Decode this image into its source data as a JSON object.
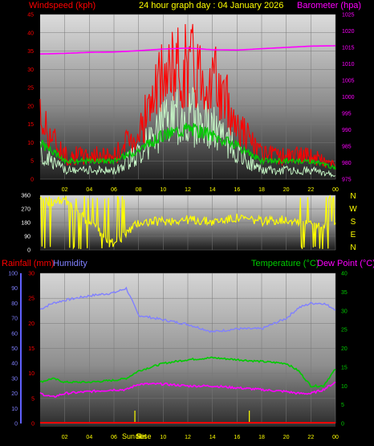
{
  "header": {
    "windspeed_label": "Windspeed (kph)",
    "title": "24 hour graph day : 04 January 2026",
    "barometer_label": "Barometer (hpa)"
  },
  "lower_header": {
    "rainfall_label": "Rainfall (mm)",
    "humidity_label": "Humidity",
    "temperature_label": "Temperature (°C)",
    "dewpoint_label": "Dew Point (°C)"
  },
  "direction_labels": [
    "N",
    "W",
    "S",
    "E",
    "N"
  ],
  "sun_labels": {
    "sunrise": "Sun Rise",
    "sunset": "Set"
  },
  "colors": {
    "wind_gust": "#ff0000",
    "wind_avg": "#00cc00",
    "wind_speed": "#ccffcc",
    "barometer": "#ff00ff",
    "direction": "#ffff00",
    "humidity": "#8080ff",
    "temperature": "#00cc00",
    "dewpoint": "#ff00ff",
    "rainfall": "#ff0000"
  },
  "chart_data": [
    {
      "type": "line",
      "title": "24 hour graph day : 04 January 2026",
      "ylabel_left": "Windspeed (kph)",
      "ylabel_right": "Barometer (hpa)",
      "x_ticks": [
        "02",
        "04",
        "06",
        "08",
        "10",
        "12",
        "14",
        "16",
        "18",
        "20",
        "22",
        "00"
      ],
      "ylim_left": [
        0,
        45
      ],
      "y_ticks_left": [
        0,
        5,
        10,
        15,
        20,
        25,
        30,
        35,
        40,
        45
      ],
      "ylim_right": [
        975,
        1025
      ],
      "y_ticks_right": [
        975,
        980,
        985,
        990,
        995,
        1000,
        1005,
        1010,
        1015,
        1020,
        1025
      ],
      "hours": [
        0,
        2,
        4,
        6,
        8,
        10,
        12,
        14,
        16,
        18,
        20,
        22,
        24
      ],
      "series": [
        {
          "name": "Windspeed (kph)",
          "values": [
            12,
            4,
            4,
            4,
            12,
            24,
            30,
            24,
            12,
            4,
            4,
            4,
            2
          ]
        },
        {
          "name": "Gust",
          "values": [
            18,
            7,
            7,
            7,
            14,
            30,
            35,
            30,
            17,
            7,
            7,
            7,
            4
          ]
        },
        {
          "name": "Average",
          "values": [
            10,
            5,
            5,
            5,
            8,
            12,
            14,
            12,
            9,
            5,
            5,
            5,
            3
          ]
        },
        {
          "name": "Barometer (hpa)",
          "values": [
            1013,
            1013.2,
            1013.5,
            1013.6,
            1014,
            1014.5,
            1014.8,
            1014.3,
            1014.2,
            1014.6,
            1015,
            1015.4,
            1015.5
          ]
        }
      ]
    },
    {
      "type": "scatter",
      "ylabel": "Wind direction",
      "ylim": [
        0,
        360
      ],
      "y_ticks": [
        0,
        90,
        180,
        270,
        360
      ],
      "x_ticks": [
        "02",
        "04",
        "06",
        "08",
        "10",
        "12",
        "14",
        "16",
        "18",
        "20",
        "22",
        "00"
      ],
      "hours": [
        0,
        2,
        4,
        6,
        8,
        10,
        12,
        14,
        16,
        18,
        20,
        22,
        24
      ],
      "series": [
        {
          "name": "Wind direction",
          "values": [
            315,
            320,
            180,
            40,
            180,
            190,
            200,
            185,
            210,
            190,
            200,
            180,
            160
          ]
        }
      ]
    },
    {
      "type": "line",
      "ylabel_left_outer": "Humidity",
      "ylim_humidity": [
        0,
        100
      ],
      "y_ticks_humidity": [
        0,
        10,
        20,
        30,
        40,
        50,
        60,
        70,
        80,
        90,
        100
      ],
      "ylabel_left_inner": "Rainfall (mm)",
      "ylim_rainfall": [
        0,
        30
      ],
      "y_ticks_rainfall": [
        0,
        5,
        10,
        15,
        20,
        25,
        30
      ],
      "ylabel_right": "Temperature (°C)",
      "ylim_temperature": [
        0,
        40
      ],
      "y_ticks_temperature": [
        0,
        5,
        10,
        15,
        20,
        25,
        30,
        35,
        40
      ],
      "x_ticks": [
        "02",
        "04",
        "06",
        "08",
        "10",
        "12",
        "14",
        "16",
        "18",
        "20",
        "22",
        "00"
      ],
      "hours": [
        0,
        1,
        2,
        4,
        6,
        7,
        8,
        10,
        12,
        14,
        16,
        18,
        20,
        21,
        22,
        23,
        24
      ],
      "series": [
        {
          "name": "Humidity",
          "values": [
            76,
            80,
            82,
            85,
            87,
            90,
            72,
            69,
            66,
            61,
            63,
            63,
            70,
            77,
            80,
            80,
            76
          ]
        },
        {
          "name": "Temperature (°C)",
          "values": [
            11,
            12,
            11,
            11,
            11.5,
            12,
            14,
            16,
            17,
            17.5,
            17,
            16.5,
            16,
            14,
            10,
            10,
            14.5
          ]
        },
        {
          "name": "Dew Point (°C)",
          "values": [
            8,
            7,
            8,
            8.5,
            9,
            9,
            10.5,
            10.5,
            10,
            10,
            9.5,
            9,
            8.5,
            8,
            8,
            9,
            11
          ]
        },
        {
          "name": "Rainfall (mm)",
          "values": [
            0,
            0,
            0,
            0,
            0,
            0,
            0,
            0,
            0,
            0,
            0,
            0,
            0,
            0,
            0,
            0,
            0
          ]
        }
      ],
      "sunrise_hour": 7.7,
      "sunset_hour": 17
    }
  ]
}
